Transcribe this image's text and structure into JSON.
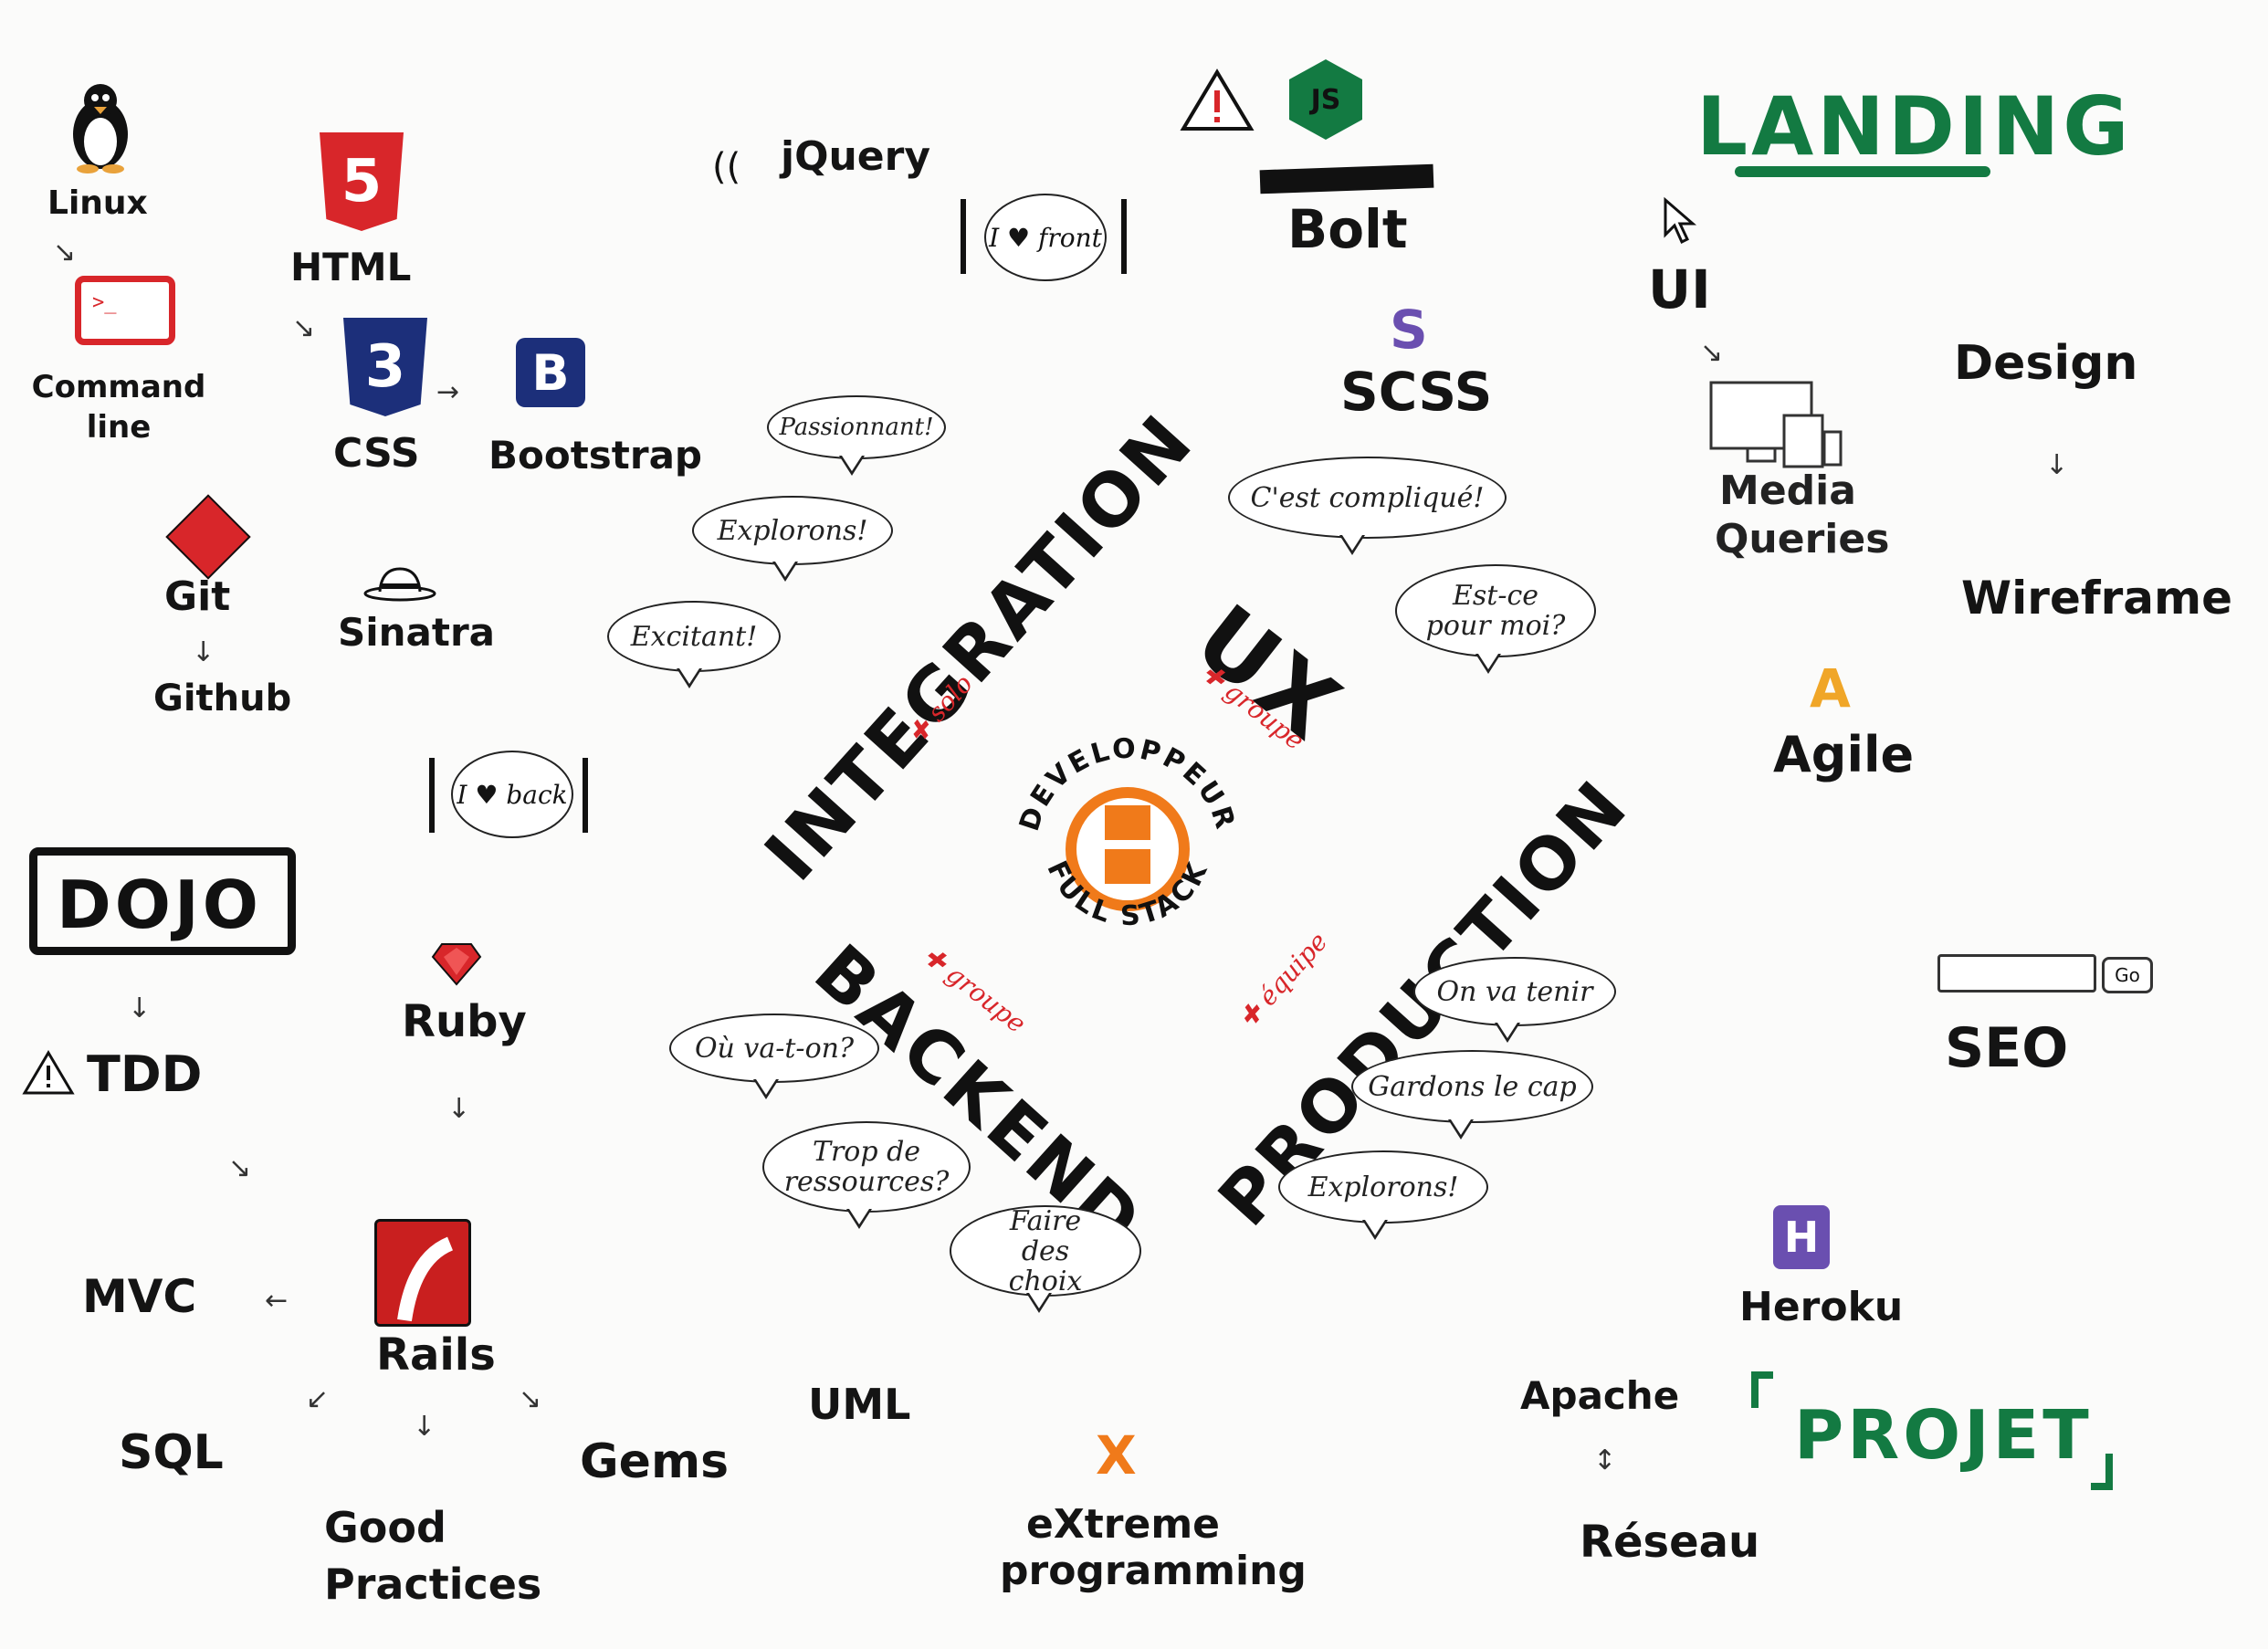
{
  "colors": {
    "ink": "#141414",
    "red": "#d8262a",
    "orange": "#f07a1a",
    "green": "#137a42",
    "purple": "#6a4fb0",
    "blue": "#1c2f7a",
    "yellow": "#f0a628"
  },
  "center": {
    "top_text": "DEVELOPPEUR",
    "bottom_text": "FULL STACK"
  },
  "axes": {
    "integration": "INTEGRATION",
    "integration_tag": "solo",
    "ux": "UX",
    "ux_tag": "groupe",
    "backend": "BACKEND",
    "backend_tag": "groupe",
    "production": "PRODUCTION",
    "production_tag": "équipe"
  },
  "bubbles": {
    "passionnant": "Passionnant!",
    "explorons1": "Explorons!",
    "excitant": "Excitant!",
    "complique": "C'est compliqué!",
    "pour_moi": "Est-ce pour moi?",
    "ou_va": "Où va-t-on?",
    "ressources": "Trop de ressources?",
    "choix": "Faire des choix",
    "tenir": "On va tenir",
    "cap": "Gardons le cap",
    "explorons2": "Explorons!"
  },
  "signs": {
    "front": "I ♥ front",
    "back": "I ♥ back"
  },
  "labels": {
    "linux": "Linux",
    "command_line": "Command line",
    "html": "HTML",
    "css": "CSS",
    "bootstrap": "Bootstrap",
    "jquery": "jQuery",
    "git": "Git",
    "github": "Github",
    "sinatra": "Sinatra",
    "bolt": "Bolt",
    "scss": "SCSS",
    "landing": "LANDING",
    "ui": "UI",
    "design": "Design",
    "media_queries": "Media Queries",
    "wireframe": "Wireframe",
    "agile": "Agile",
    "seo": "SEO",
    "seo_go": "Go",
    "dojo": "DOJO",
    "tdd": "TDD",
    "ruby": "Ruby",
    "mvc": "MVC",
    "rails": "Rails",
    "sql": "SQL",
    "good_practices": "Good Practices",
    "gems": "Gems",
    "uml": "UML",
    "xp": "eXtreme programming",
    "xp_letter": "X",
    "apache": "Apache",
    "reseau": "Réseau",
    "heroku": "Heroku",
    "projet": "PROJET",
    "js_logo": "JS",
    "html_logo": "5",
    "css_logo": "3",
    "bootstrap_logo": "B",
    "scss_logo": "S",
    "agile_logo": "A",
    "heroku_logo": "H"
  }
}
